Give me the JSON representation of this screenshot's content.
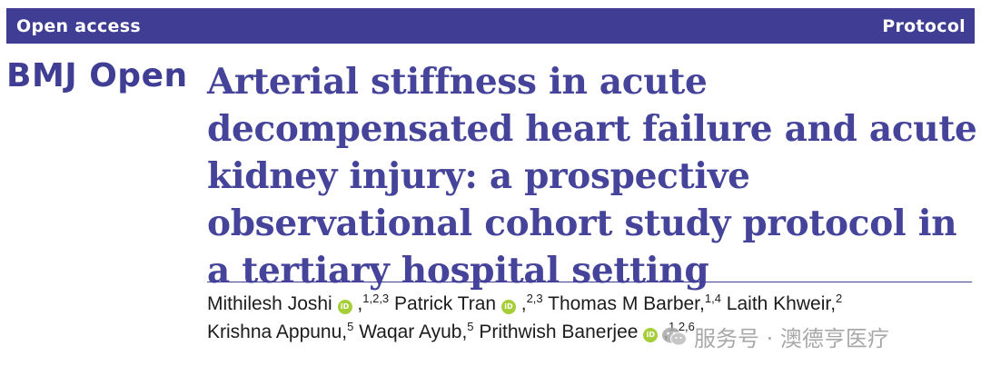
{
  "header": {
    "left_label": "Open access",
    "right_label": "Protocol"
  },
  "brand": {
    "name": "BMJ Open"
  },
  "article": {
    "title": "Arterial stiffness in acute decompensated heart failure and acute kidney injury: a prospective observational cohort study protocol in a tertiary hospital setting",
    "authors": [
      {
        "name": "Mithilesh Joshi",
        "orcid": true,
        "sep_before_aff": " ,",
        "affil": "1,2,3"
      },
      {
        "name": "Patrick Tran",
        "orcid": true,
        "sep_before_aff": " ,",
        "affil": "2,3"
      },
      {
        "name": "Thomas M Barber",
        "orcid": false,
        "sep_before_aff": ",",
        "affil": "1,4"
      },
      {
        "name": "Laith Khweir",
        "orcid": false,
        "sep_before_aff": ",",
        "affil": "2"
      },
      {
        "name": "Krishna Appunu",
        "orcid": false,
        "sep_before_aff": ",",
        "affil": "5"
      },
      {
        "name": "Waqar Ayub",
        "orcid": false,
        "sep_before_aff": ",",
        "affil": "5"
      },
      {
        "name": "Prithwish Banerjee",
        "orcid": true,
        "sep_before_aff": " ,",
        "affil": "1,2,6"
      }
    ],
    "orcid_glyph": "iD"
  },
  "watermark": {
    "text": "服务号 · 澳德亨医疗",
    "icon": "wechat-icon"
  },
  "colors": {
    "bar": "#3f3e94",
    "title": "#45449a",
    "orcid": "#a6ce39"
  }
}
